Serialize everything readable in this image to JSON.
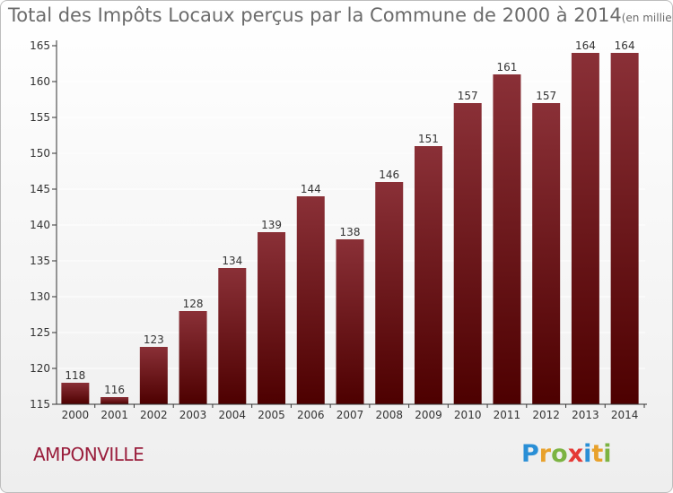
{
  "title": "Total des Impôts Locaux perçus par la Commune de 2000 à 2014",
  "title_unit": "(en milliers d'€)",
  "commune": "AMPONVILLE",
  "logo": {
    "text": "Proxiti",
    "letters": [
      "P",
      "r",
      "o",
      "x",
      "i",
      "t",
      "i"
    ],
    "colors": [
      "#2a8fd6",
      "#e8a12b",
      "#7cb342",
      "#e53935",
      "#2a8fd6",
      "#e8a12b",
      "#7cb342"
    ]
  },
  "colors": {
    "bar_top": "#8a3037",
    "bar_bottom": "#4d0000",
    "axis": "#333333",
    "grid": "#ffffff"
  },
  "chart_data": {
    "type": "bar",
    "title": "Total des Impôts Locaux perçus par la Commune de 2000 à 2014",
    "xlabel": "",
    "ylabel": "",
    "categories": [
      "2000",
      "2001",
      "2002",
      "2003",
      "2004",
      "2005",
      "2006",
      "2007",
      "2008",
      "2009",
      "2010",
      "2011",
      "2012",
      "2013",
      "2014"
    ],
    "values": [
      118,
      116,
      123,
      128,
      134,
      139,
      144,
      138,
      146,
      151,
      157,
      161,
      157,
      164,
      164
    ],
    "ylim": [
      115,
      165
    ],
    "yticks": [
      115,
      120,
      125,
      130,
      135,
      140,
      145,
      150,
      155,
      160,
      165
    ],
    "grid": true
  }
}
